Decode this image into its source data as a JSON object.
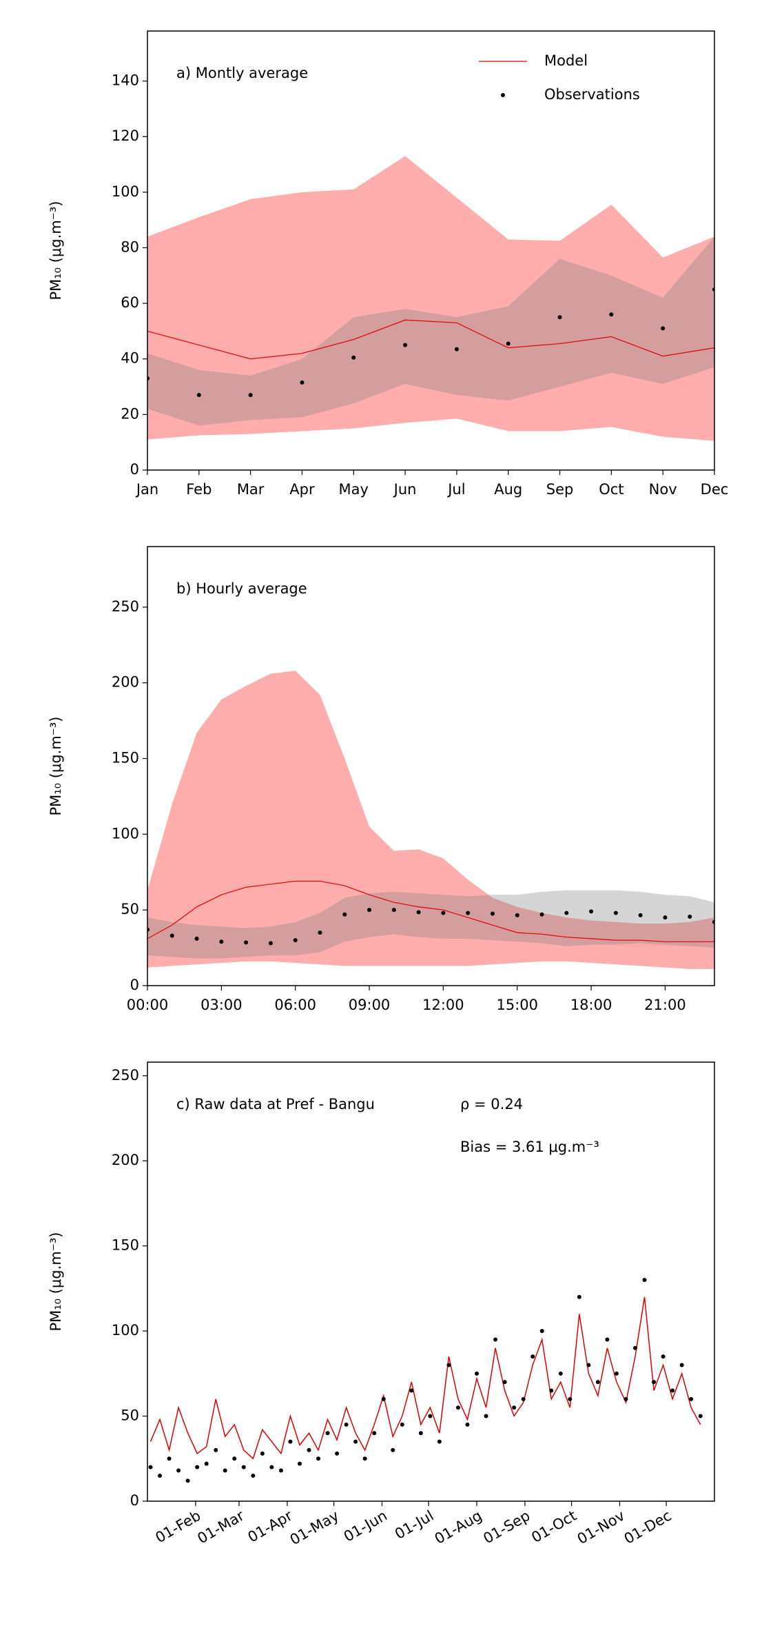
{
  "chart_data": [
    {
      "type": "line",
      "title": "a) Montly average",
      "ylabel": "PM₁₀ (μg.m⁻³)",
      "categories": [
        "Jan",
        "Feb",
        "Mar",
        "Apr",
        "May",
        "Jun",
        "Jul",
        "Aug",
        "Sep",
        "Oct",
        "Nov",
        "Dec"
      ],
      "ylim": [
        0,
        158
      ],
      "yticks": [
        0,
        20,
        40,
        60,
        80,
        100,
        120,
        140
      ],
      "bands": [
        {
          "color": "#ff0000",
          "lower": [
            11,
            12.5,
            13,
            14,
            15,
            17,
            18.5,
            14,
            14,
            15.5,
            12,
            10.5
          ],
          "upper": [
            84,
            91,
            97.5,
            100,
            101,
            113,
            98,
            83,
            82.5,
            95.5,
            76.5,
            84
          ]
        },
        {
          "color": "#808080",
          "lower": [
            22,
            16,
            18,
            19,
            24,
            31,
            27,
            25,
            30,
            35,
            31,
            37
          ],
          "upper": [
            42,
            36,
            34,
            40,
            55,
            58,
            55,
            59,
            76,
            70,
            62,
            84
          ]
        }
      ],
      "series": [
        {
          "name": "Model",
          "color": "#e00000",
          "mark": "line",
          "values": [
            50,
            45,
            40,
            42,
            47,
            54,
            53,
            44,
            45.5,
            48,
            41,
            44
          ]
        },
        {
          "name": "Observations",
          "color": "#000000",
          "mark": "dot",
          "values": [
            33,
            27,
            27,
            31.5,
            40.5,
            45,
            43.5,
            45.5,
            55,
            56,
            51,
            65
          ]
        }
      ],
      "legend": "upper right"
    },
    {
      "type": "line",
      "title": "b) Hourly average",
      "ylabel": "PM₁₀ (μg.m⁻³)",
      "x": [
        0,
        1,
        2,
        3,
        4,
        5,
        6,
        7,
        8,
        9,
        10,
        11,
        12,
        13,
        14,
        15,
        16,
        17,
        18,
        19,
        20,
        21,
        22,
        23
      ],
      "xlim": [
        0,
        23
      ],
      "xticks": [
        {
          "value": 0,
          "label": "00:00"
        },
        {
          "value": 3,
          "label": "03:00"
        },
        {
          "value": 6,
          "label": "06:00"
        },
        {
          "value": 9,
          "label": "09:00"
        },
        {
          "value": 12,
          "label": "12:00"
        },
        {
          "value": 15,
          "label": "15:00"
        },
        {
          "value": 18,
          "label": "18:00"
        },
        {
          "value": 21,
          "label": "21:00"
        }
      ],
      "ylim": [
        0,
        290
      ],
      "yticks": [
        0,
        50,
        100,
        150,
        200,
        250
      ],
      "bands": [
        {
          "color": "#ff0000",
          "lower": [
            12,
            13,
            14,
            15,
            16,
            16,
            15,
            14,
            13,
            13,
            13,
            13,
            13,
            13,
            14,
            15,
            16,
            16,
            15,
            14,
            13,
            12,
            11,
            11
          ],
          "upper": [
            63,
            120,
            167,
            189,
            198,
            206,
            208,
            192,
            150,
            105,
            89,
            90,
            84,
            70,
            58,
            52,
            48,
            45,
            43,
            42,
            41,
            41,
            42,
            45
          ]
        },
        {
          "color": "#808080",
          "lower": [
            20,
            19,
            18,
            18,
            19,
            20,
            20,
            22,
            29,
            32,
            34,
            32,
            31,
            31,
            30,
            29,
            28,
            26,
            27,
            27,
            28,
            27,
            26,
            25
          ],
          "upper": [
            45,
            42,
            40,
            39,
            38,
            39,
            42,
            48,
            58,
            61,
            62,
            61,
            60,
            59,
            60,
            60,
            62,
            63,
            63,
            63,
            62,
            60,
            59,
            55
          ]
        }
      ],
      "series": [
        {
          "color": "#e00000",
          "mark": "line",
          "values": [
            31,
            40,
            52,
            60,
            65,
            67,
            69,
            69,
            66,
            60,
            55,
            52,
            50,
            45,
            40,
            35,
            34,
            32,
            31,
            30,
            30,
            29,
            29,
            29
          ]
        },
        {
          "color": "#000000",
          "mark": "dot",
          "values": [
            37,
            33,
            31,
            29,
            28.5,
            28,
            30,
            35,
            47,
            50,
            50,
            48.5,
            48,
            48,
            47.5,
            46.5,
            47,
            48,
            49,
            48,
            46.5,
            45,
            45.5,
            42
          ]
        }
      ]
    },
    {
      "type": "line",
      "title": "c) Raw data at Pref - Bangu",
      "ylabel": "PM₁₀ (μg.m⁻³)",
      "annotations": [
        "ρ = 0.24",
        "Bias = 3.61 μg.m⁻³"
      ],
      "x": [
        3,
        9,
        15,
        21,
        27,
        33,
        39,
        45,
        51,
        57,
        63,
        69,
        75,
        81,
        87,
        93,
        99,
        105,
        111,
        117,
        123,
        129,
        135,
        141,
        147,
        153,
        159,
        165,
        171,
        177,
        183,
        189,
        195,
        201,
        207,
        213,
        219,
        225,
        231,
        237,
        243,
        249,
        255,
        261,
        267,
        273,
        279,
        285,
        291,
        297,
        303,
        309,
        315,
        321,
        327,
        333,
        339,
        345,
        351,
        357
      ],
      "xlim": [
        1,
        366
      ],
      "xticks": [
        {
          "value": 32,
          "label": "01-Feb"
        },
        {
          "value": 60,
          "label": "01-Mar"
        },
        {
          "value": 91,
          "label": "01-Apr"
        },
        {
          "value": 121,
          "label": "01-May"
        },
        {
          "value": 152,
          "label": "01-Jun"
        },
        {
          "value": 182,
          "label": "01-Jul"
        },
        {
          "value": 213,
          "label": "01-Aug"
        },
        {
          "value": 244,
          "label": "01-Sep"
        },
        {
          "value": 274,
          "label": "01-Oct"
        },
        {
          "value": 305,
          "label": "01-Nov"
        },
        {
          "value": 335,
          "label": "01-Dec"
        }
      ],
      "ylim": [
        0,
        258
      ],
      "yticks": [
        0,
        50,
        100,
        150,
        200,
        250
      ],
      "series": [
        {
          "color": "#e00000",
          "mark": "line",
          "values": [
            35,
            48,
            30,
            55,
            40,
            28,
            32,
            60,
            38,
            45,
            30,
            25,
            42,
            35,
            28,
            50,
            33,
            40,
            30,
            48,
            36,
            55,
            40,
            30,
            45,
            62,
            38,
            50,
            70,
            45,
            55,
            40,
            85,
            60,
            48,
            72,
            55,
            90,
            65,
            50,
            58,
            80,
            95,
            60,
            70,
            55,
            110,
            75,
            62,
            90,
            70,
            58,
            85,
            120,
            65,
            80,
            60,
            75,
            55,
            45
          ]
        },
        {
          "color": "#000000",
          "mark": "dot",
          "values": [
            20,
            15,
            25,
            18,
            12,
            20,
            22,
            30,
            18,
            25,
            20,
            15,
            28,
            20,
            18,
            35,
            22,
            30,
            25,
            40,
            28,
            45,
            35,
            25,
            40,
            60,
            30,
            45,
            65,
            40,
            50,
            35,
            80,
            55,
            45,
            75,
            50,
            95,
            70,
            55,
            60,
            85,
            100,
            65,
            75,
            60,
            120,
            80,
            70,
            95,
            75,
            60,
            90,
            130,
            70,
            85,
            65,
            80,
            60,
            50
          ]
        }
      ]
    }
  ]
}
